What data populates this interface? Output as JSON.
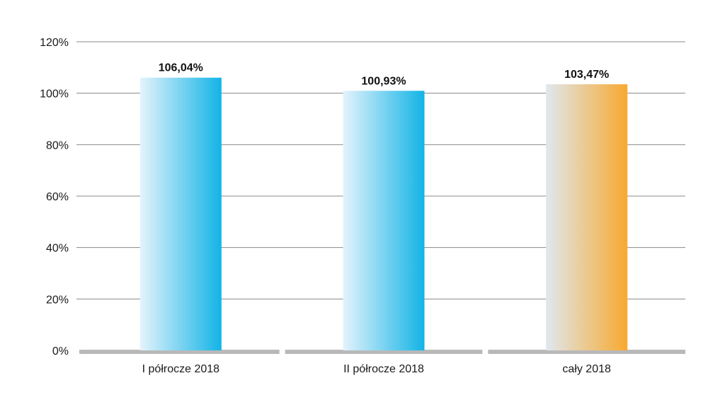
{
  "chart_data": {
    "type": "bar",
    "categories": [
      "I półrocze 2018",
      "II półrocze 2018",
      "cały 2018"
    ],
    "values": [
      106.04,
      100.93,
      103.47
    ],
    "data_labels": [
      "106,04%",
      "100,93%",
      "103,47%"
    ],
    "title": "",
    "xlabel": "",
    "ylabel": "",
    "ylim": [
      0,
      120
    ],
    "yticks": [
      0,
      20,
      40,
      60,
      80,
      100,
      120
    ],
    "ytick_labels": [
      "0%",
      "20%",
      "40%",
      "60%",
      "80%",
      "100%",
      "120%"
    ],
    "grid": true,
    "legend": "none",
    "bar_colors": [
      {
        "from": "#e4f3fc",
        "to": "#12b4e6"
      },
      {
        "from": "#e4f3fc",
        "to": "#12b4e6"
      },
      {
        "from": "#dfe8ef",
        "to": "#f8a92f"
      }
    ],
    "gridline_color": "#8a8a8a",
    "baseline_color": "#b9b9b9"
  }
}
